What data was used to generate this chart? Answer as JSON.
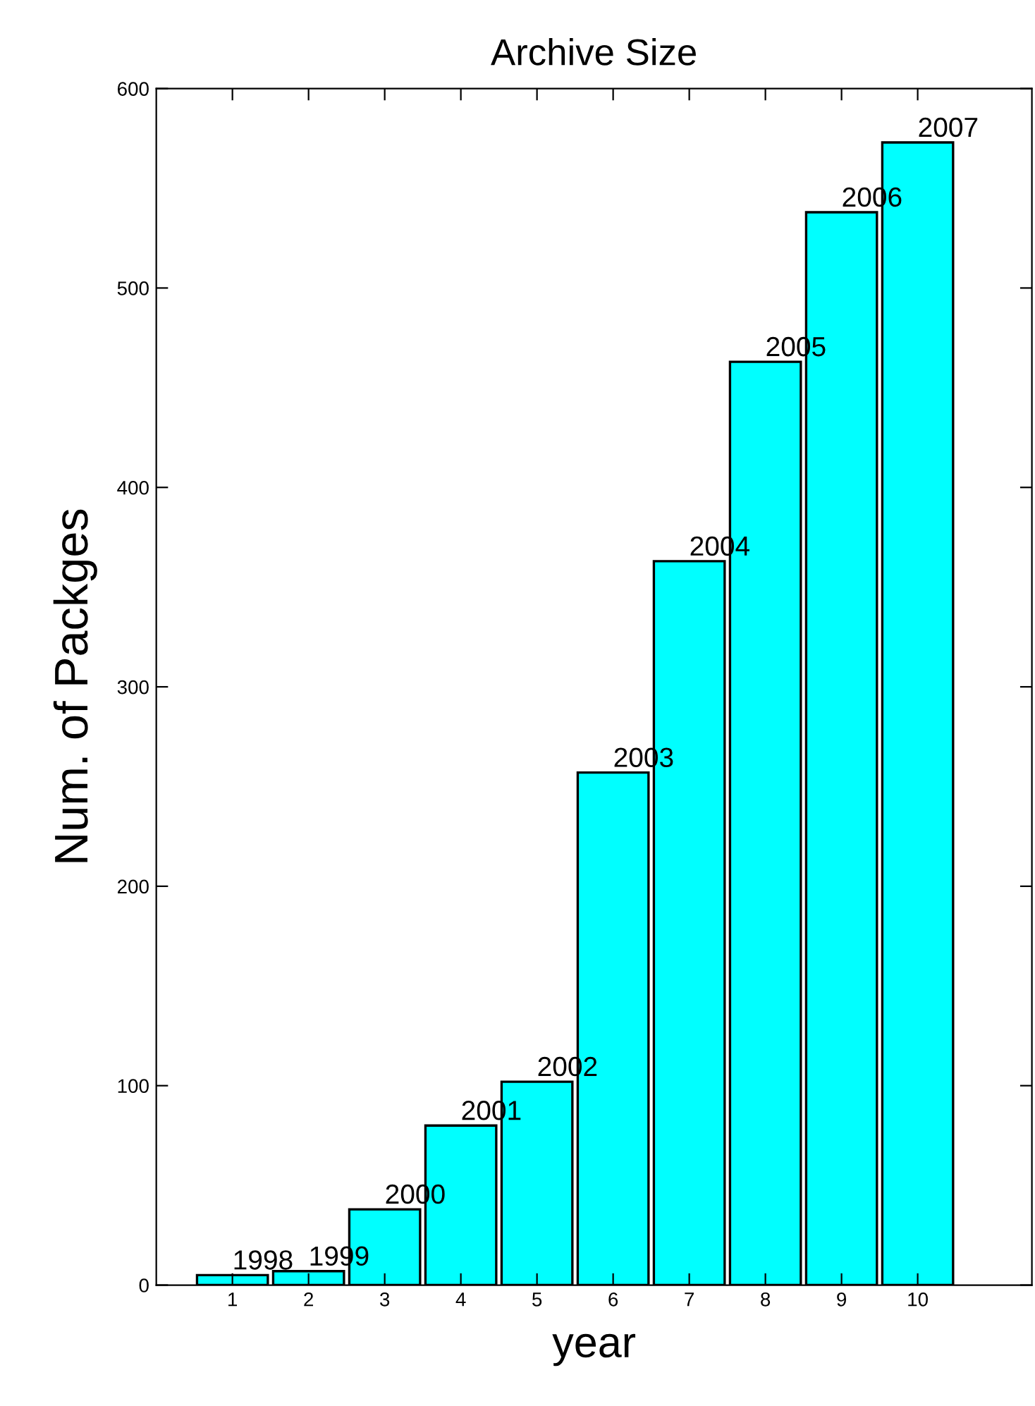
{
  "chart_data": {
    "type": "bar",
    "title": "Archive Size",
    "xlabel": "year",
    "ylabel": "Num. of Packges",
    "x": [
      1,
      2,
      3,
      4,
      5,
      6,
      7,
      8,
      9,
      10
    ],
    "values": [
      5,
      7,
      38,
      80,
      102,
      257,
      363,
      463,
      538,
      573
    ],
    "color": "#00ffff",
    "xlim": [
      0,
      11.5
    ],
    "xticks": [
      1,
      2,
      3,
      4,
      5,
      6,
      7,
      8,
      9,
      10
    ],
    "ylim": [
      0,
      600
    ],
    "yticks": [
      0,
      100,
      200,
      300,
      400,
      500,
      600
    ],
    "grid": false,
    "legend": false,
    "annotations": [
      {
        "text": "1998",
        "x": 1,
        "y": 5
      },
      {
        "text": "1999",
        "x": 2,
        "y": 7
      },
      {
        "text": "2000",
        "x": 3,
        "y": 38
      },
      {
        "text": "2001",
        "x": 4,
        "y": 80
      },
      {
        "text": "2002",
        "x": 5,
        "y": 102
      },
      {
        "text": "2003",
        "x": 6,
        "y": 257
      },
      {
        "text": "2004",
        "x": 7,
        "y": 363
      },
      {
        "text": "2005",
        "x": 8,
        "y": 463
      },
      {
        "text": "2006",
        "x": 9,
        "y": 538
      },
      {
        "text": "2007",
        "x": 10,
        "y": 573
      }
    ]
  }
}
